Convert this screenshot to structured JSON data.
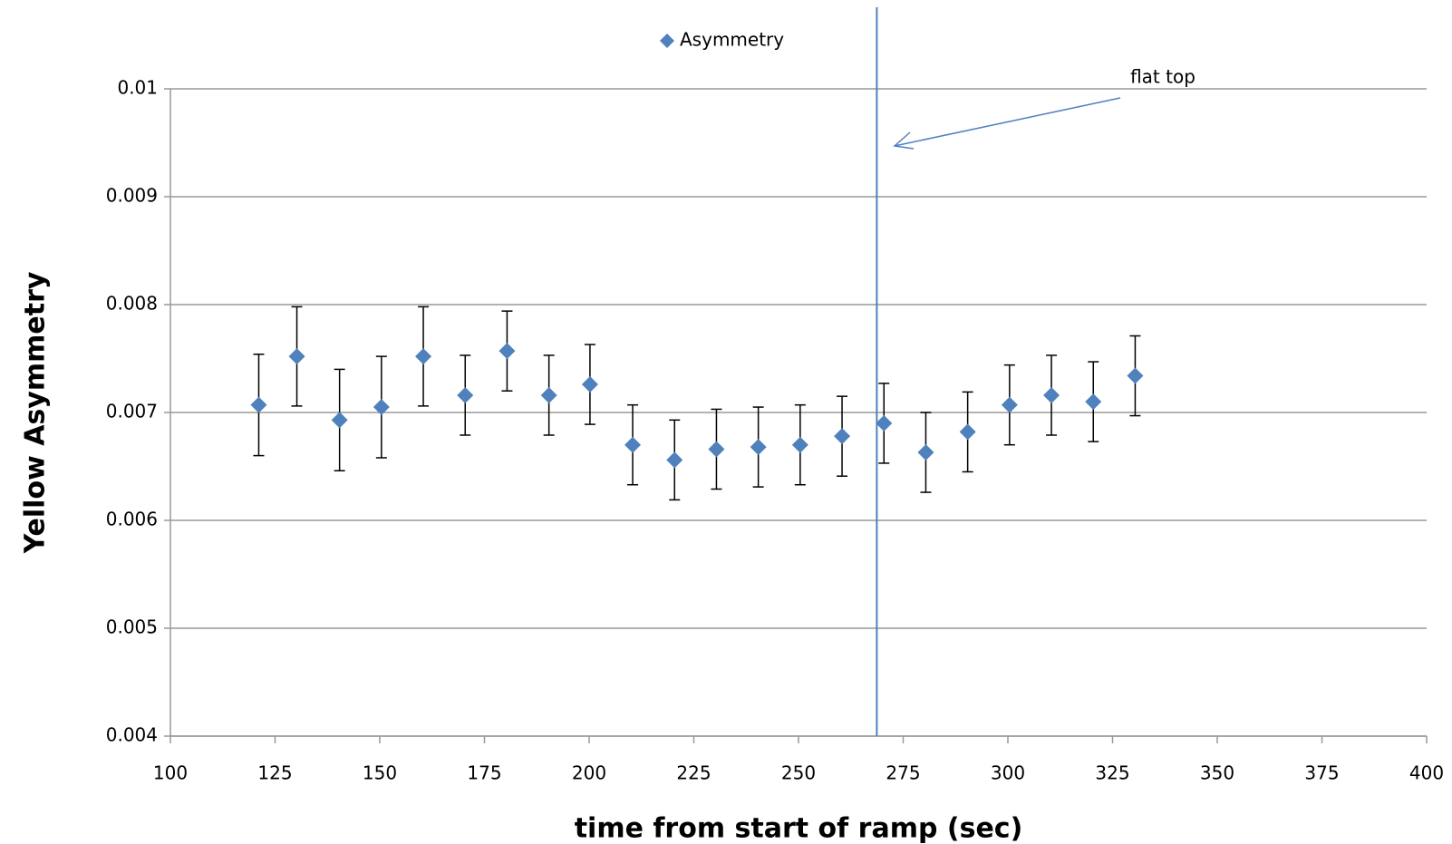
{
  "chart_data": {
    "type": "scatter",
    "x_label": "time from start of ramp (sec)",
    "y_label": "Yellow Asymmetry",
    "annotation": "flat top",
    "x": [
      121.1,
      130.2,
      140.4,
      150.4,
      160.4,
      170.4,
      180.4,
      190.4,
      200.2,
      210.4,
      220.4,
      230.4,
      240.4,
      250.4,
      260.4,
      270.4,
      280.4,
      290.4,
      300.4,
      310.4,
      320.4,
      330.4
    ],
    "series": [
      {
        "name": "Asymmetry",
        "color": "#4f81bd",
        "values": [
          0.00707,
          0.00752,
          0.00693,
          0.00705,
          0.00752,
          0.00716,
          0.00757,
          0.00716,
          0.00726,
          0.0067,
          0.00656,
          0.00666,
          0.00668,
          0.0067,
          0.00678,
          0.0069,
          0.00663,
          0.00682,
          0.00707,
          0.00716,
          0.0071,
          0.00734
        ],
        "errors": [
          0.00047,
          0.00046,
          0.00047,
          0.00047,
          0.00046,
          0.00037,
          0.00037,
          0.00037,
          0.00037,
          0.00037,
          0.00037,
          0.00037,
          0.00037,
          0.00037,
          0.00037,
          0.00037,
          0.00037,
          0.00037,
          0.00037,
          0.00037,
          0.00037,
          0.00037
        ]
      }
    ],
    "vline": 268.7,
    "xlim": [
      100,
      400
    ],
    "xticks": [
      100,
      125,
      150,
      175,
      200,
      225,
      250,
      275,
      300,
      325,
      350,
      375,
      400
    ],
    "ylim": [
      0.004,
      0.01
    ],
    "yticks": [
      0.004,
      0.005,
      0.006,
      0.007,
      0.008,
      0.009,
      0.01
    ],
    "grid": true,
    "legend": "top"
  }
}
